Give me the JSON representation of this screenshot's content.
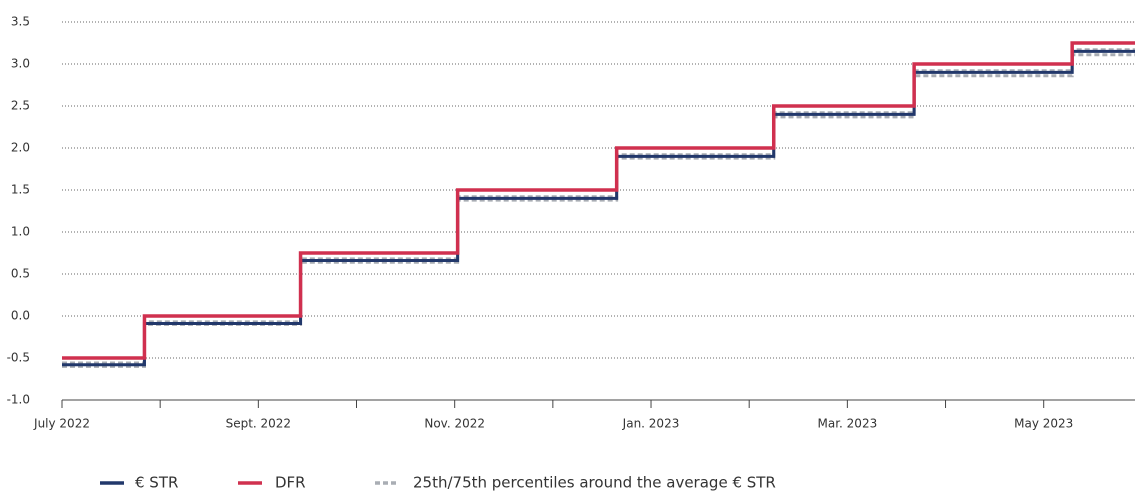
{
  "chart_data": {
    "type": "step",
    "x": [
      0,
      0.84,
      2.43,
      4.03,
      5.65,
      7.25,
      8.68,
      10.29,
      10.93
    ],
    "series": [
      {
        "name": "€ STR",
        "color": "#22386b",
        "values": [
          -0.58,
          -0.09,
          0.66,
          1.4,
          1.9,
          2.4,
          2.9,
          3.15,
          3.15
        ]
      },
      {
        "name": "DFR",
        "color": "#d0304f",
        "values": [
          -0.5,
          0,
          0.75,
          1.5,
          2,
          2.5,
          3,
          3.25,
          3.25
        ]
      },
      {
        "name": "25th/75th percentiles around the average € STR",
        "color": "#a9adb4",
        "dashed": true,
        "low": [
          -0.6,
          -0.1,
          0.64,
          1.38,
          1.88,
          2.37,
          2.86,
          3.11,
          3.11
        ],
        "high": [
          -0.56,
          -0.07,
          0.68,
          1.42,
          1.92,
          2.42,
          2.92,
          3.17,
          3.17
        ]
      }
    ],
    "xlim": [
      0,
      10.93
    ],
    "xticks": [
      {
        "value": 0,
        "label": "July 2022"
      },
      {
        "value": 2,
        "label": "Sept. 2022"
      },
      {
        "value": 4,
        "label": "Nov. 2022"
      },
      {
        "value": 6,
        "label": "Jan. 2023"
      },
      {
        "value": 8,
        "label": "Mar. 2023"
      },
      {
        "value": 10,
        "label": "May 2023"
      }
    ],
    "xminorticks": [
      1,
      3,
      5,
      7,
      9
    ],
    "ylim": [
      -1,
      3.5
    ],
    "yticks": [
      {
        "value": -1,
        "label": "-1.0"
      },
      {
        "value": -0.5,
        "label": "-0.5"
      },
      {
        "value": 0,
        "label": "0.0"
      },
      {
        "value": 0.5,
        "label": "0.5"
      },
      {
        "value": 1,
        "label": "1.0"
      },
      {
        "value": 1.5,
        "label": "1.5"
      },
      {
        "value": 2,
        "label": "2.0"
      },
      {
        "value": 2.5,
        "label": "2.5"
      },
      {
        "value": 3,
        "label": "3.0"
      },
      {
        "value": 3.5,
        "label": "3.5"
      }
    ],
    "grid": true
  }
}
